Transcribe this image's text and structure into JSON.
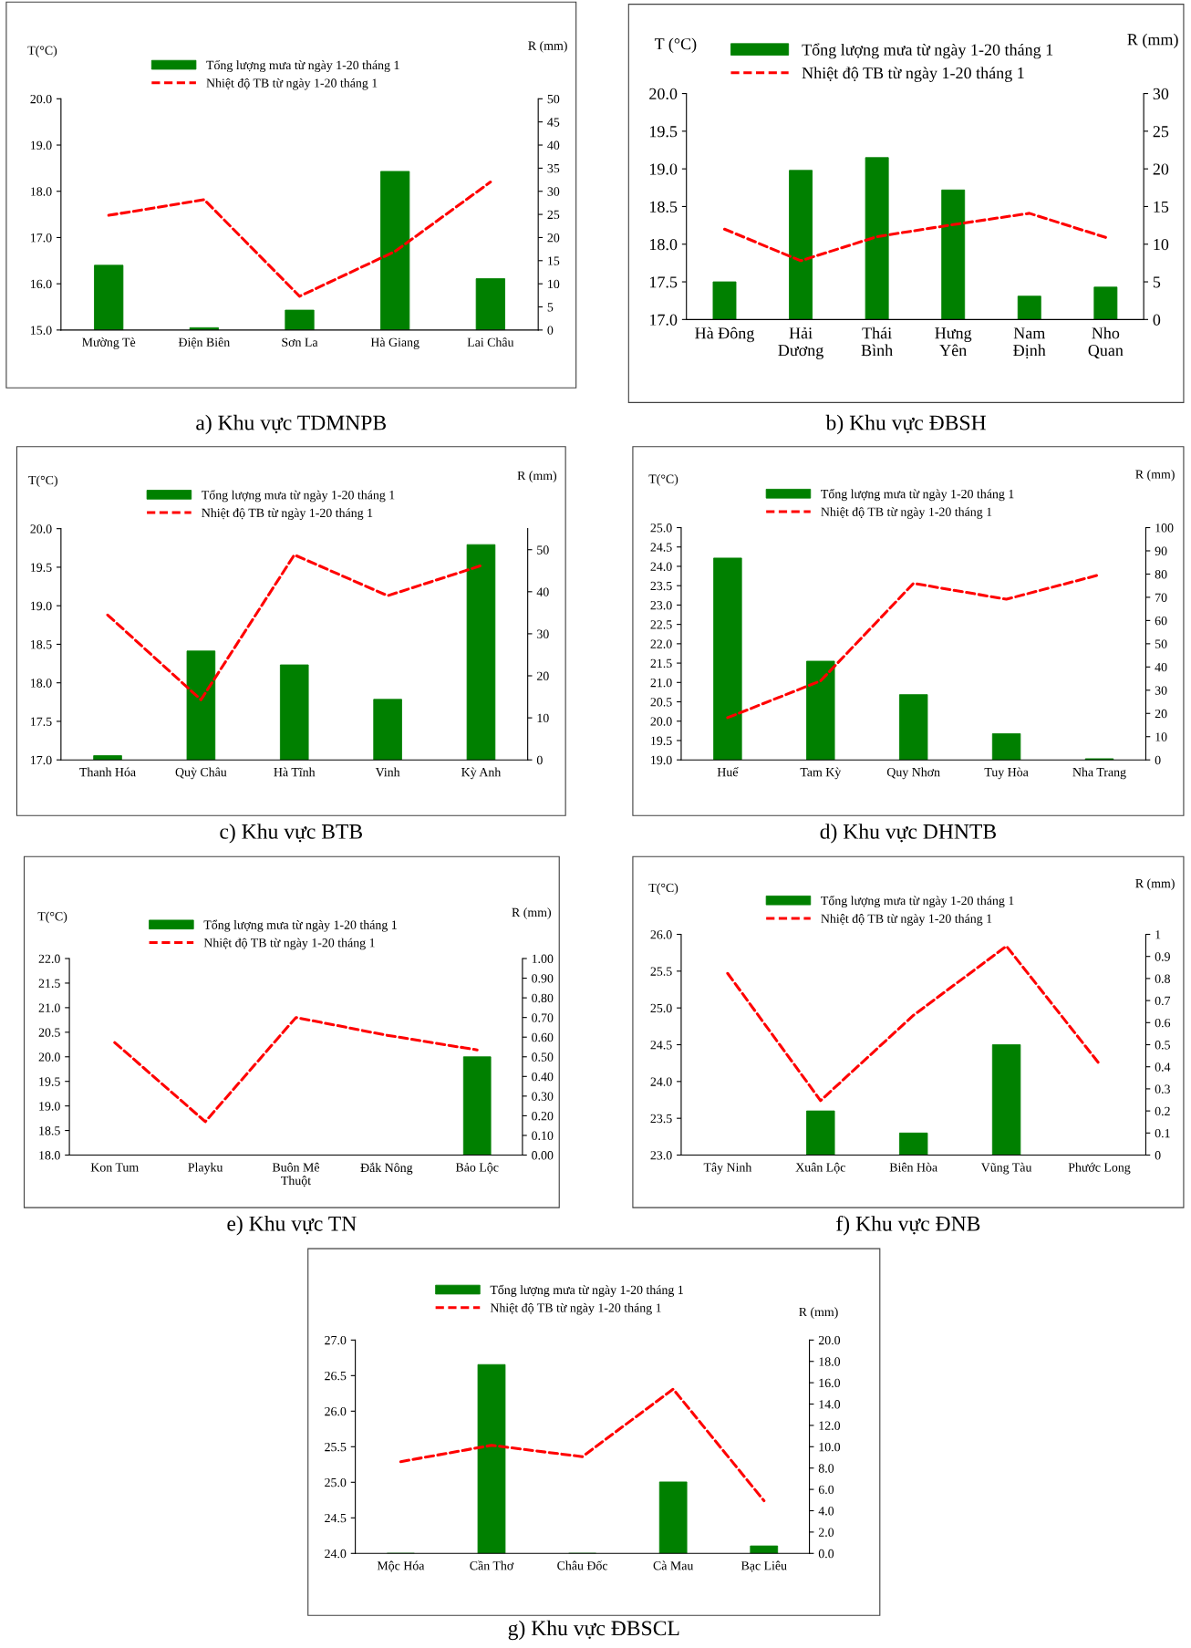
{
  "chart_data": [
    {
      "type": "bar",
      "title": "a) Khu vực TDMNPB",
      "ylabel": "T(°C)",
      "y2label": "R (mm)",
      "legend": "top",
      "categories": [
        "Mường Tè",
        "Điện Biên",
        "Sơn La",
        "Hà Giang",
        "Lai Châu"
      ],
      "series": [
        {
          "name": "Tổng lượng mưa từ ngày 1-20 tháng 1",
          "axis": "y2",
          "color": "#008000",
          "values": [
            14,
            0.5,
            4.3,
            34.3,
            11.1
          ]
        },
        {
          "name": "Nhiệt độ TB từ ngày 1-20 tháng 1",
          "type": "line",
          "color": "#ff0000",
          "line_style": "dashed",
          "values": [
            17.48,
            17.82,
            15.73,
            16.7,
            18.2
          ]
        }
      ],
      "ylim": [
        15,
        20
      ],
      "yticks": [
        {
          "value": 15,
          "label": "15.0"
        },
        {
          "value": 16,
          "label": "16.0"
        },
        {
          "value": 17,
          "label": "17.0"
        },
        {
          "value": 18,
          "label": "18.0"
        },
        {
          "value": 19,
          "label": "19.0"
        },
        {
          "value": 20,
          "label": "20.0"
        }
      ],
      "y2lim": [
        0,
        50
      ],
      "y2ticks": [
        0,
        5,
        10,
        15,
        20,
        25,
        30,
        35,
        40,
        45,
        50
      ]
    },
    {
      "type": "bar",
      "title": "b) Khu vực ĐBSH",
      "ylabel": "T (°C)",
      "y2label": "R (mm)",
      "legend": "top",
      "categories": [
        "Hà Đông",
        "Hải\nDương",
        "Thái\nBình",
        "Hưng\nYên",
        "Nam\nĐịnh",
        "Nho\nQuan"
      ],
      "series": [
        {
          "name": "Tổng lượng mưa từ ngày 1-20 tháng 1",
          "axis": "y2",
          "color": "#008000",
          "values": [
            5.0,
            19.8,
            21.5,
            17.2,
            3.1,
            4.3
          ]
        },
        {
          "name": "Nhiệt độ TB từ ngày 1-20 tháng 1",
          "type": "line",
          "color": "#ff0000",
          "line_style": "dashed",
          "values": [
            18.2,
            17.78,
            18.1,
            18.26,
            18.41,
            18.09
          ]
        }
      ],
      "ylim": [
        17,
        20
      ],
      "yticks": [
        {
          "value": 17,
          "label": "17.0"
        },
        17.5,
        {
          "value": 18,
          "label": "18.0"
        },
        18.5,
        {
          "value": 19,
          "label": "19.0"
        },
        19.5,
        {
          "value": 20,
          "label": "20.0"
        }
      ],
      "y2lim": [
        0,
        30
      ],
      "y2ticks": [
        0,
        5,
        10,
        15,
        20,
        25,
        30
      ]
    },
    {
      "type": "bar",
      "title": "c) Khu vực BTB",
      "ylabel": "T(°C)",
      "y2label": "R (mm)",
      "legend": "top",
      "categories": [
        "Thanh Hóa",
        "Quỳ Châu",
        "Hà Tĩnh",
        "Vinh",
        "Kỳ Anh"
      ],
      "series": [
        {
          "name": "Tổng lượng mưa từ ngày 1-20 tháng 1",
          "axis": "y2",
          "color": "#008000",
          "values": [
            1.0,
            25.9,
            22.6,
            14.4,
            51.2
          ]
        },
        {
          "name": "Nhiệt độ TB từ ngày 1-20 tháng 1",
          "type": "line",
          "color": "#ff0000",
          "line_style": "dashed",
          "values": [
            18.88,
            17.78,
            19.66,
            19.13,
            19.52
          ]
        }
      ],
      "ylim": [
        17,
        20
      ],
      "yticks": [
        {
          "value": 17,
          "label": "17.0"
        },
        17.5,
        {
          "value": 18,
          "label": "18.0"
        },
        18.5,
        {
          "value": 19,
          "label": "19.0"
        },
        19.5,
        {
          "value": 20,
          "label": "20.0"
        }
      ],
      "y2lim": [
        0,
        55
      ],
      "y2ticks": [
        0,
        10,
        20,
        30,
        40,
        50
      ]
    },
    {
      "type": "bar",
      "title": "d) Khu vực DHNTB",
      "ylabel": "T(°C)",
      "y2label": "R (mm)",
      "legend": "top",
      "categories": [
        "Huế",
        "Tam Kỳ",
        "Quy Nhơn",
        "Tuy Hòa",
        "Nha Trang"
      ],
      "series": [
        {
          "name": "Tổng lượng mưa từ ngày 1-20 tháng 1",
          "axis": "y2",
          "color": "#008000",
          "values": [
            86.9,
            42.5,
            28.1,
            11.3,
            0.5
          ]
        },
        {
          "name": "Nhiệt độ TB từ ngày 1-20 tháng 1",
          "type": "line",
          "color": "#ff0000",
          "line_style": "dashed",
          "values": [
            20.09,
            21.04,
            23.56,
            23.15,
            23.78
          ]
        }
      ],
      "ylim": [
        19,
        25
      ],
      "yticks": [
        {
          "value": 19,
          "label": "19.0"
        },
        19.5,
        {
          "value": 20,
          "label": "20.0"
        },
        20.5,
        {
          "value": 21,
          "label": "21.0"
        },
        21.5,
        {
          "value": 22,
          "label": "22.0"
        },
        22.5,
        {
          "value": 23,
          "label": "23.0"
        },
        23.5,
        {
          "value": 24,
          "label": "24.0"
        },
        24.5,
        {
          "value": 25,
          "label": "25.0"
        }
      ],
      "y2lim": [
        0,
        100
      ],
      "y2ticks": [
        0,
        10,
        20,
        30,
        40,
        50,
        60,
        70,
        80,
        90,
        100
      ]
    },
    {
      "type": "bar",
      "title": "e) Khu vực TN",
      "ylabel": "T(°C)",
      "y2label": "R (mm)",
      "legend": "top",
      "categories": [
        "Kon Tum",
        "Playku",
        "Buôn Mê\nThuột",
        "Đắk Nông",
        "Bảo Lộc"
      ],
      "series": [
        {
          "name": "Tổng lượng mưa từ ngày 1-20 tháng 1",
          "axis": "y2",
          "color": "#008000",
          "values": [
            0,
            0,
            0,
            0,
            0.5
          ]
        },
        {
          "name": "Nhiệt độ TB từ ngày 1-20 tháng 1",
          "type": "line",
          "color": "#ff0000",
          "line_style": "dashed",
          "values": [
            20.29,
            18.68,
            20.8,
            20.44,
            20.14
          ]
        }
      ],
      "ylim": [
        18,
        22
      ],
      "yticks": [
        {
          "value": 18,
          "label": "18.0"
        },
        18.5,
        {
          "value": 19,
          "label": "19.0"
        },
        19.5,
        {
          "value": 20,
          "label": "20.0"
        },
        20.5,
        {
          "value": 21,
          "label": "21.0"
        },
        21.5,
        {
          "value": 22,
          "label": "22.0"
        }
      ],
      "y2lim": [
        0,
        1
      ],
      "y2ticks": [
        {
          "value": 0,
          "label": "0.00"
        },
        {
          "value": 0.1,
          "label": "0.10"
        },
        {
          "value": 0.2,
          "label": "0.20"
        },
        {
          "value": 0.3,
          "label": "0.30"
        },
        {
          "value": 0.4,
          "label": "0.40"
        },
        {
          "value": 0.5,
          "label": "0.50"
        },
        {
          "value": 0.6,
          "label": "0.60"
        },
        {
          "value": 0.7,
          "label": "0.70"
        },
        {
          "value": 0.8,
          "label": "0.80"
        },
        {
          "value": 0.9,
          "label": "0.90"
        },
        {
          "value": 1,
          "label": "1.00"
        }
      ]
    },
    {
      "type": "bar",
      "title": "f) Khu vực ĐNB",
      "ylabel": "T(°C)",
      "y2label": "R (mm)",
      "legend": "top",
      "categories": [
        "Tây Ninh",
        "Xuân Lộc",
        "Biên Hòa",
        "Vũng Tàu",
        "Phước Long"
      ],
      "series": [
        {
          "name": "Tổng lượng mưa từ ngày 1-20 tháng 1",
          "axis": "y2",
          "color": "#008000",
          "values": [
            0,
            0.2,
            0.1,
            0.5,
            0
          ]
        },
        {
          "name": "Nhiệt độ TB từ ngày 1-20 tháng 1",
          "type": "line",
          "color": "#ff0000",
          "line_style": "dashed",
          "values": [
            25.47,
            23.74,
            24.9,
            25.84,
            24.24
          ]
        }
      ],
      "ylim": [
        23,
        26
      ],
      "yticks": [
        {
          "value": 23,
          "label": "23.0"
        },
        23.5,
        {
          "value": 24,
          "label": "24.0"
        },
        24.5,
        {
          "value": 25,
          "label": "25.0"
        },
        25.5,
        {
          "value": 26,
          "label": "26.0"
        }
      ],
      "y2lim": [
        0,
        1
      ],
      "y2ticks": [
        0,
        0.1,
        0.2,
        0.3,
        0.4,
        0.5,
        0.6,
        0.7,
        0.8,
        0.9,
        1
      ]
    },
    {
      "type": "bar",
      "title": "g) Khu vực ĐBSCL",
      "y2label": "R (mm)",
      "legend": "top",
      "categories": [
        "Mộc Hóa",
        "Cần Thơ",
        "Châu Đốc",
        "Cà Mau",
        "Bạc Liêu"
      ],
      "series": [
        {
          "name": "Tổng lượng mưa từ ngày 1-20 tháng 1",
          "axis": "y2",
          "color": "#008000",
          "values": [
            0,
            17.7,
            0,
            6.7,
            0.7
          ]
        },
        {
          "name": "Nhiệt độ TB từ ngày 1-20 tháng 1",
          "type": "line",
          "color": "#ff0000",
          "line_style": "dashed",
          "values": [
            25.29,
            25.52,
            25.36,
            26.31,
            24.74
          ]
        }
      ],
      "ylim": [
        24,
        27
      ],
      "yticks": [
        {
          "value": 24,
          "label": "24.0"
        },
        24.5,
        {
          "value": 25,
          "label": "25.0"
        },
        25.5,
        {
          "value": 26,
          "label": "26.0"
        },
        26.5,
        {
          "value": 27,
          "label": "27.0"
        }
      ],
      "y2lim": [
        0,
        20
      ],
      "y2ticks": [
        {
          "value": 0,
          "label": "0.0"
        },
        {
          "value": 2,
          "label": "2.0"
        },
        {
          "value": 4,
          "label": "4.0"
        },
        {
          "value": 6,
          "label": "6.0"
        },
        {
          "value": 8,
          "label": "8.0"
        },
        {
          "value": 10,
          "label": "10.0"
        },
        {
          "value": 12,
          "label": "12.0"
        },
        {
          "value": 14,
          "label": "14.0"
        },
        {
          "value": 16,
          "label": "16.0"
        },
        {
          "value": 18,
          "label": "18.0"
        },
        {
          "value": 20,
          "label": "20.0"
        }
      ]
    }
  ]
}
